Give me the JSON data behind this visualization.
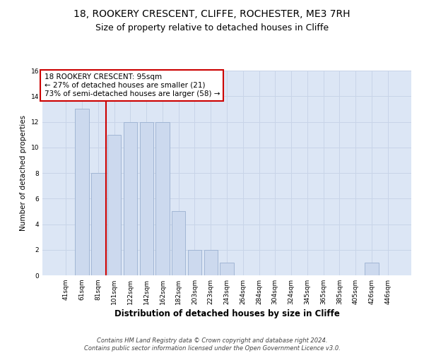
{
  "title": "18, ROOKERY CRESCENT, CLIFFE, ROCHESTER, ME3 7RH",
  "subtitle": "Size of property relative to detached houses in Cliffe",
  "xlabel": "Distribution of detached houses by size in Cliffe",
  "ylabel": "Number of detached properties",
  "bar_labels": [
    "41sqm",
    "61sqm",
    "81sqm",
    "101sqm",
    "122sqm",
    "142sqm",
    "162sqm",
    "182sqm",
    "203sqm",
    "223sqm",
    "243sqm",
    "264sqm",
    "284sqm",
    "304sqm",
    "324sqm",
    "345sqm",
    "365sqm",
    "385sqm",
    "405sqm",
    "426sqm",
    "446sqm"
  ],
  "bar_values": [
    0,
    13,
    8,
    11,
    12,
    12,
    12,
    5,
    2,
    2,
    1,
    0,
    0,
    0,
    0,
    0,
    0,
    0,
    0,
    1,
    0
  ],
  "bar_color": "#ccd9ee",
  "bar_edge_color": "#9ab0d0",
  "vline_x_index": 3,
  "vline_color": "#cc0000",
  "annotation_text": "18 ROOKERY CRESCENT: 95sqm\n← 27% of detached houses are smaller (21)\n73% of semi-detached houses are larger (58) →",
  "annotation_box_facecolor": "#ffffff",
  "annotation_box_edgecolor": "#cc0000",
  "ylim": [
    0,
    16
  ],
  "yticks": [
    0,
    2,
    4,
    6,
    8,
    10,
    12,
    14,
    16
  ],
  "grid_color": "#c8d4e8",
  "background_color": "#dce6f5",
  "footer_text": "Contains HM Land Registry data © Crown copyright and database right 2024.\nContains public sector information licensed under the Open Government Licence v3.0.",
  "title_fontsize": 10,
  "subtitle_fontsize": 9,
  "xlabel_fontsize": 8.5,
  "ylabel_fontsize": 7.5,
  "tick_fontsize": 6.5,
  "annotation_fontsize": 7.5,
  "footer_fontsize": 6
}
